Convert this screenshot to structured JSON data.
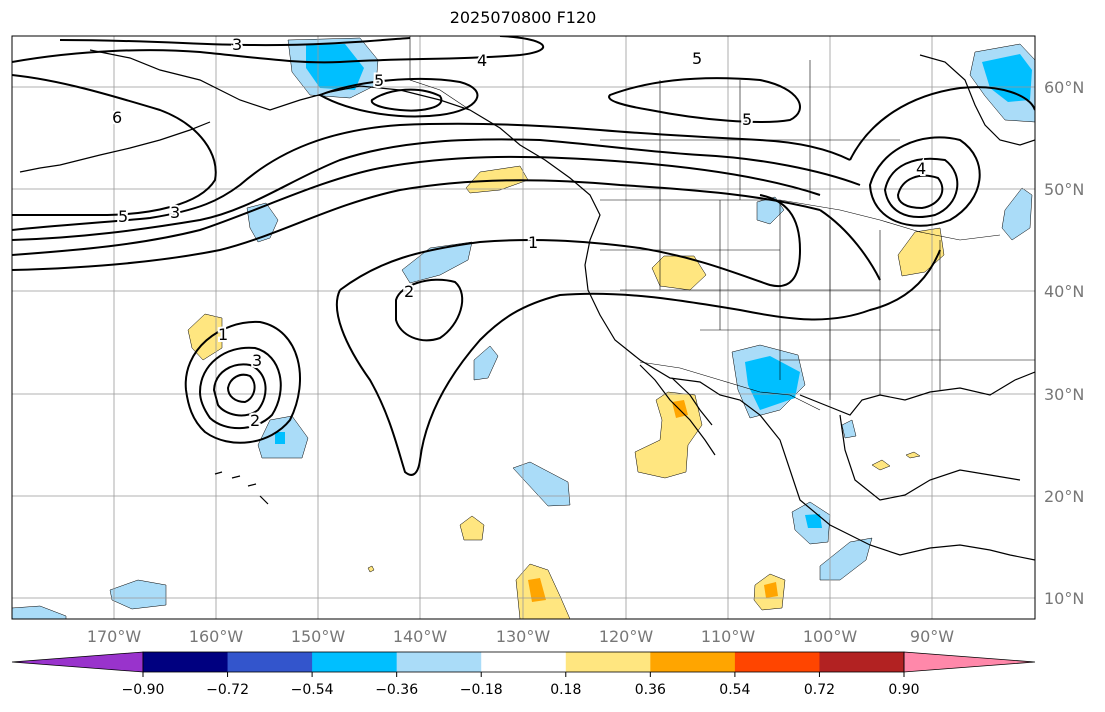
{
  "title": "2025070800 F120",
  "lon_labels": [
    "170°W",
    "160°W",
    "150°W",
    "140°W",
    "130°W",
    "120°W",
    "110°W",
    "100°W",
    "90°W"
  ],
  "lat_labels": [
    "60°N",
    "50°N",
    "40°N",
    "30°N",
    "20°N",
    "10°N"
  ],
  "colorbar": {
    "ticks": [
      "−0.90",
      "−0.72",
      "−0.54",
      "−0.36",
      "−0.18",
      "0.18",
      "0.36",
      "0.54",
      "0.72",
      "0.90"
    ],
    "colors": [
      "#9933cc",
      "#000080",
      "#3355cc",
      "#00bfff",
      "#aadcf8",
      "#ffffff",
      "#ffe680",
      "#ffa500",
      "#ff4500",
      "#b22222",
      "#ff88aa"
    ]
  },
  "contour_labels": [
    "3",
    "4",
    "5",
    "5",
    "6",
    "5",
    "5",
    "3",
    "4",
    "1",
    "2",
    "1",
    "3",
    "2"
  ],
  "colors": {
    "land_line": "#000000",
    "grid": "#999999",
    "tick_label": "#777777"
  }
}
